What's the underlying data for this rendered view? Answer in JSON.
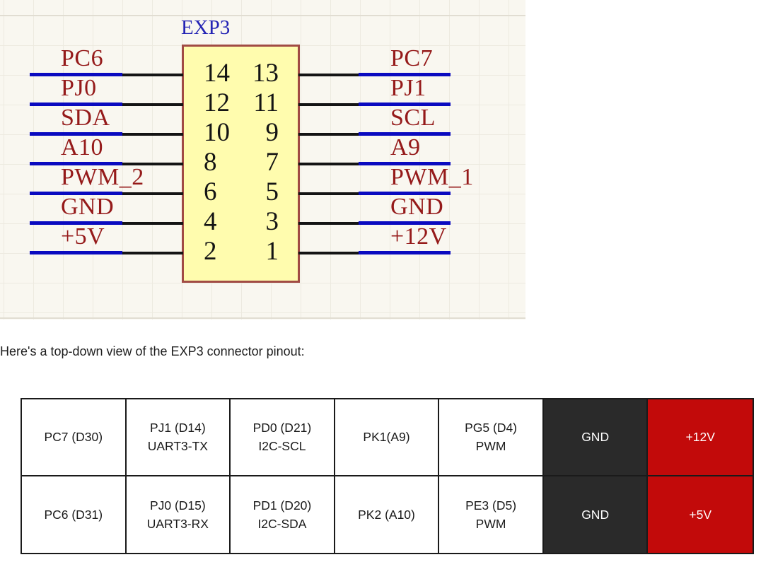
{
  "schematic": {
    "title": "EXP3",
    "rows": [
      {
        "left": "PC6",
        "pin_left": "14",
        "pin_right": "13",
        "right": "PC7"
      },
      {
        "left": "PJ0",
        "pin_left": "12",
        "pin_right": "11",
        "right": "PJ1"
      },
      {
        "left": "SDA",
        "pin_left": "10",
        "pin_right": "9",
        "right": "SCL"
      },
      {
        "left": "A10",
        "pin_left": "8",
        "pin_right": "7",
        "right": "A9"
      },
      {
        "left": "PWM_2",
        "pin_left": "6",
        "pin_right": "5",
        "right": "PWM_1"
      },
      {
        "left": "GND",
        "pin_left": "4",
        "pin_right": "3",
        "right": "GND"
      },
      {
        "left": "+5V",
        "pin_left": "2",
        "pin_right": "1",
        "right": "+12V"
      }
    ],
    "colors": {
      "background": "#F9F7F0",
      "grid_line": "#EDEAE0",
      "wire_blue": "#0A0AC0",
      "wire_black": "#141414",
      "net_label": "#951A1A",
      "title_blue": "#2424B4",
      "box_fill": "#FFFCAE",
      "box_border": "#A14B44"
    }
  },
  "caption": "Here's a top-down view of the EXP3 connector pinout:",
  "pinout_table": {
    "rows": [
      {
        "cells": [
          {
            "lines": [
              "PC7 (D30)"
            ],
            "style": "plain"
          },
          {
            "lines": [
              "PJ1 (D14)",
              "UART3-TX"
            ],
            "style": "plain"
          },
          {
            "lines": [
              "PD0 (D21)",
              "I2C-SCL"
            ],
            "style": "plain"
          },
          {
            "lines": [
              "PK1(A9)"
            ],
            "style": "plain"
          },
          {
            "lines": [
              "PG5 (D4)",
              "PWM"
            ],
            "style": "plain"
          },
          {
            "lines": [
              "GND"
            ],
            "style": "gnd"
          },
          {
            "lines": [
              "+12V"
            ],
            "style": "power"
          }
        ]
      },
      {
        "cells": [
          {
            "lines": [
              "PC6 (D31)"
            ],
            "style": "plain"
          },
          {
            "lines": [
              "PJ0 (D15)",
              "UART3-RX"
            ],
            "style": "plain"
          },
          {
            "lines": [
              "PD1 (D20)",
              "I2C-SDA"
            ],
            "style": "plain"
          },
          {
            "lines": [
              "PK2 (A10)"
            ],
            "style": "plain"
          },
          {
            "lines": [
              "PE3 (D5)",
              "PWM"
            ],
            "style": "plain"
          },
          {
            "lines": [
              "GND"
            ],
            "style": "gnd"
          },
          {
            "lines": [
              "+5V"
            ],
            "style": "power"
          }
        ]
      }
    ],
    "colors": {
      "border": "#1A1A1A",
      "text": "#1A1A1A",
      "gnd_bg": "#2A2A2A",
      "power_bg": "#C20A0A",
      "inverse_text": "#FFFFFF"
    }
  }
}
